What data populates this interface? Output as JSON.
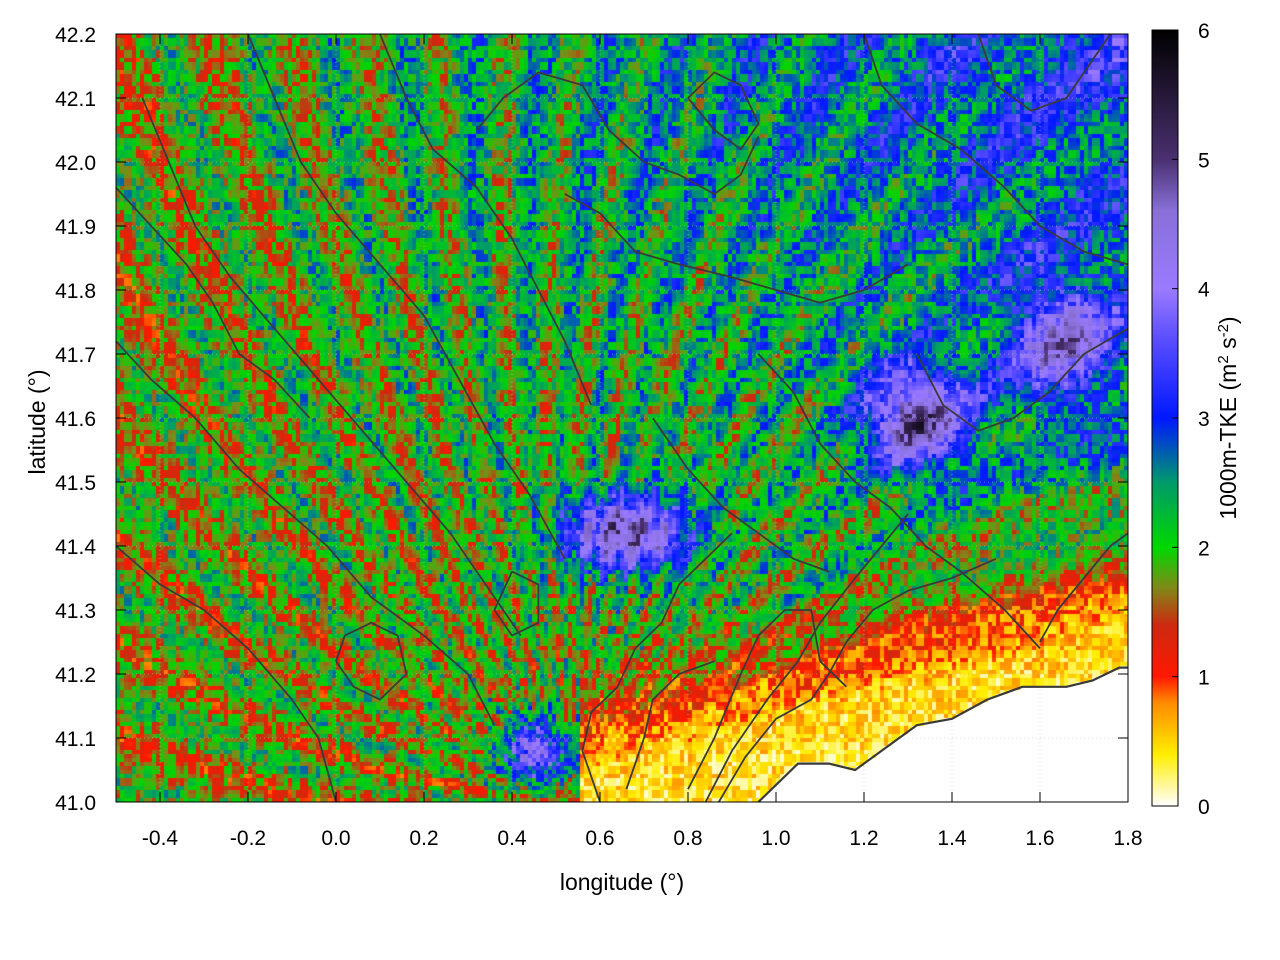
{
  "chart_data": {
    "type": "heatmap",
    "title": "",
    "xlabel": "longitude (°)",
    "ylabel": "latitude (°)",
    "colorbar_label_main": "1000m-TKE (m",
    "colorbar_label_sup1": "2",
    "colorbar_label_mid": " s",
    "colorbar_label_sup2": "-2",
    "colorbar_label_end": ")",
    "xlim": [
      -0.5,
      1.8
    ],
    "ylim": [
      41.0,
      42.2
    ],
    "clim": [
      0,
      6
    ],
    "x_ticks": [
      {
        "value": -0.4,
        "label": "-0.4"
      },
      {
        "value": -0.2,
        "label": "-0.2"
      },
      {
        "value": 0.0,
        "label": "0.0"
      },
      {
        "value": 0.2,
        "label": "0.2"
      },
      {
        "value": 0.4,
        "label": "0.4"
      },
      {
        "value": 0.6,
        "label": "0.6"
      },
      {
        "value": 0.8,
        "label": "0.8"
      },
      {
        "value": 1.0,
        "label": "1.0"
      },
      {
        "value": 1.2,
        "label": "1.2"
      },
      {
        "value": 1.4,
        "label": "1.4"
      },
      {
        "value": 1.6,
        "label": "1.6"
      },
      {
        "value": 1.8,
        "label": "1.8"
      }
    ],
    "y_ticks": [
      {
        "value": 41.0,
        "label": "41.0"
      },
      {
        "value": 41.1,
        "label": "41.1"
      },
      {
        "value": 41.2,
        "label": "41.2"
      },
      {
        "value": 41.3,
        "label": "41.3"
      },
      {
        "value": 41.4,
        "label": "41.4"
      },
      {
        "value": 41.5,
        "label": "41.5"
      },
      {
        "value": 41.6,
        "label": "41.6"
      },
      {
        "value": 41.7,
        "label": "41.7"
      },
      {
        "value": 41.8,
        "label": "41.8"
      },
      {
        "value": 41.9,
        "label": "41.9"
      },
      {
        "value": 42.0,
        "label": "42.0"
      },
      {
        "value": 42.1,
        "label": "42.1"
      },
      {
        "value": 42.2,
        "label": "42.2"
      }
    ],
    "colorbar_ticks": [
      {
        "value": 0,
        "label": "0"
      },
      {
        "value": 1,
        "label": "1"
      },
      {
        "value": 2,
        "label": "2"
      },
      {
        "value": 3,
        "label": "3"
      },
      {
        "value": 4,
        "label": "4"
      },
      {
        "value": 5,
        "label": "5"
      },
      {
        "value": 6,
        "label": "6"
      }
    ],
    "colormap": [
      {
        "value": 0.0,
        "color": "#ffffff"
      },
      {
        "value": 0.4,
        "color": "#ffee00"
      },
      {
        "value": 0.8,
        "color": "#ff8a00"
      },
      {
        "value": 1.0,
        "color": "#ff1800"
      },
      {
        "value": 1.4,
        "color": "#cc2a10"
      },
      {
        "value": 1.7,
        "color": "#7c8c18"
      },
      {
        "value": 2.0,
        "color": "#00d800"
      },
      {
        "value": 2.5,
        "color": "#009a6a"
      },
      {
        "value": 3.0,
        "color": "#0018ff"
      },
      {
        "value": 3.6,
        "color": "#5a4dff"
      },
      {
        "value": 4.0,
        "color": "#9a7aff"
      },
      {
        "value": 4.6,
        "color": "#8870d8"
      },
      {
        "value": 5.0,
        "color": "#4a3070"
      },
      {
        "value": 6.0,
        "color": "#000000"
      }
    ],
    "contour_color": "#3a3a3a",
    "coastline": [
      [
        0.96,
        41.0
      ],
      [
        1.05,
        41.06
      ],
      [
        1.12,
        41.06
      ],
      [
        1.18,
        41.05
      ],
      [
        1.26,
        41.09
      ],
      [
        1.32,
        41.12
      ],
      [
        1.4,
        41.13
      ],
      [
        1.48,
        41.16
      ],
      [
        1.56,
        41.18
      ],
      [
        1.66,
        41.18
      ],
      [
        1.72,
        41.19
      ],
      [
        1.78,
        41.21
      ],
      [
        1.8,
        41.21
      ]
    ],
    "contours": [
      [
        [
          0.87,
          41.0
        ],
        [
          0.93,
          41.07
        ],
        [
          1.0,
          41.13
        ],
        [
          1.08,
          41.16
        ],
        [
          1.12,
          41.2
        ],
        [
          1.16,
          41.25
        ],
        [
          1.22,
          41.3
        ],
        [
          1.3,
          41.33
        ],
        [
          1.4,
          41.35
        ],
        [
          1.5,
          41.38
        ]
      ],
      [
        [
          0.84,
          41.0
        ],
        [
          0.9,
          41.08
        ],
        [
          0.98,
          41.16
        ],
        [
          1.05,
          41.22
        ],
        [
          1.1,
          41.28
        ],
        [
          1.18,
          41.35
        ],
        [
          1.24,
          41.4
        ],
        [
          1.3,
          41.45
        ]
      ],
      [
        [
          0.8,
          41.02
        ],
        [
          0.86,
          41.1
        ],
        [
          0.92,
          41.2
        ],
        [
          0.96,
          41.26
        ],
        [
          1.02,
          41.3
        ],
        [
          1.08,
          41.3
        ],
        [
          1.1,
          41.22
        ],
        [
          1.16,
          41.18
        ]
      ],
      [
        [
          0.6,
          41.0
        ],
        [
          0.56,
          41.08
        ],
        [
          0.58,
          41.14
        ],
        [
          0.64,
          41.18
        ],
        [
          0.68,
          41.24
        ],
        [
          0.74,
          41.28
        ],
        [
          0.78,
          41.34
        ],
        [
          0.84,
          41.38
        ],
        [
          0.9,
          41.42
        ]
      ],
      [
        [
          0.66,
          41.02
        ],
        [
          0.7,
          41.1
        ],
        [
          0.72,
          41.16
        ],
        [
          0.78,
          41.2
        ],
        [
          0.86,
          41.22
        ]
      ],
      [
        [
          1.6,
          41.25
        ],
        [
          1.64,
          41.3
        ],
        [
          1.7,
          41.35
        ],
        [
          1.76,
          41.4
        ],
        [
          1.8,
          41.42
        ]
      ],
      [
        [
          -0.5,
          41.72
        ],
        [
          -0.42,
          41.66
        ],
        [
          -0.32,
          41.6
        ],
        [
          -0.22,
          41.52
        ],
        [
          -0.12,
          41.46
        ],
        [
          -0.02,
          41.4
        ],
        [
          0.08,
          41.32
        ],
        [
          0.2,
          41.26
        ],
        [
          0.3,
          41.2
        ],
        [
          0.36,
          41.12
        ]
      ],
      [
        [
          -0.5,
          41.4
        ],
        [
          -0.4,
          41.34
        ],
        [
          -0.3,
          41.3
        ],
        [
          -0.2,
          41.24
        ],
        [
          -0.1,
          41.16
        ],
        [
          -0.04,
          41.1
        ],
        [
          0.0,
          41.0
        ]
      ],
      [
        [
          -0.44,
          42.1
        ],
        [
          -0.38,
          42.0
        ],
        [
          -0.32,
          41.9
        ],
        [
          -0.24,
          41.82
        ],
        [
          -0.14,
          41.74
        ],
        [
          -0.04,
          41.66
        ],
        [
          0.06,
          41.58
        ],
        [
          0.16,
          41.5
        ],
        [
          0.26,
          41.42
        ],
        [
          0.34,
          41.34
        ],
        [
          0.42,
          41.26
        ]
      ],
      [
        [
          -0.2,
          42.2
        ],
        [
          -0.14,
          42.1
        ],
        [
          -0.08,
          42.0
        ],
        [
          0.0,
          41.92
        ],
        [
          0.1,
          41.84
        ],
        [
          0.2,
          41.76
        ],
        [
          0.28,
          41.66
        ],
        [
          0.36,
          41.56
        ],
        [
          0.44,
          41.48
        ],
        [
          0.52,
          41.38
        ]
      ],
      [
        [
          0.1,
          42.2
        ],
        [
          0.16,
          42.1
        ],
        [
          0.22,
          42.02
        ],
        [
          0.32,
          41.96
        ],
        [
          0.4,
          41.88
        ],
        [
          0.46,
          41.8
        ],
        [
          0.52,
          41.72
        ],
        [
          0.58,
          41.62
        ]
      ],
      [
        [
          0.32,
          42.05
        ],
        [
          0.38,
          42.1
        ],
        [
          0.46,
          42.14
        ],
        [
          0.56,
          42.12
        ],
        [
          0.62,
          42.05
        ],
        [
          0.7,
          42.0
        ],
        [
          0.78,
          41.98
        ],
        [
          0.86,
          41.95
        ],
        [
          0.92,
          41.98
        ],
        [
          0.96,
          42.04
        ]
      ],
      [
        [
          0.52,
          41.95
        ],
        [
          0.6,
          41.92
        ],
        [
          0.68,
          41.86
        ],
        [
          0.78,
          41.84
        ],
        [
          0.9,
          41.82
        ],
        [
          1.0,
          41.8
        ],
        [
          1.1,
          41.78
        ],
        [
          1.2,
          41.8
        ],
        [
          1.3,
          41.84
        ]
      ],
      [
        [
          0.8,
          42.1
        ],
        [
          0.86,
          42.05
        ],
        [
          0.92,
          42.02
        ],
        [
          0.96,
          42.06
        ],
        [
          0.92,
          42.12
        ],
        [
          0.86,
          42.14
        ],
        [
          0.8,
          42.1
        ]
      ],
      [
        [
          1.2,
          42.2
        ],
        [
          1.24,
          42.12
        ],
        [
          1.32,
          42.06
        ],
        [
          1.42,
          42.02
        ],
        [
          1.52,
          41.96
        ],
        [
          1.6,
          41.9
        ],
        [
          1.7,
          41.86
        ],
        [
          1.8,
          41.84
        ]
      ],
      [
        [
          1.46,
          42.2
        ],
        [
          1.5,
          42.12
        ],
        [
          1.58,
          42.08
        ],
        [
          1.66,
          42.1
        ],
        [
          1.72,
          42.16
        ],
        [
          1.76,
          42.2
        ]
      ],
      [
        [
          0.96,
          41.7
        ],
        [
          1.04,
          41.64
        ],
        [
          1.1,
          41.56
        ],
        [
          1.18,
          41.5
        ],
        [
          1.26,
          41.46
        ],
        [
          1.34,
          41.4
        ],
        [
          1.42,
          41.36
        ],
        [
          1.52,
          41.3
        ],
        [
          1.6,
          41.24
        ]
      ],
      [
        [
          0.72,
          41.6
        ],
        [
          0.8,
          41.52
        ],
        [
          0.88,
          41.46
        ],
        [
          0.96,
          41.42
        ],
        [
          1.04,
          41.38
        ],
        [
          1.12,
          41.36
        ]
      ],
      [
        [
          -0.5,
          41.96
        ],
        [
          -0.42,
          41.9
        ],
        [
          -0.34,
          41.84
        ],
        [
          -0.28,
          41.78
        ],
        [
          -0.22,
          41.7
        ],
        [
          -0.14,
          41.66
        ],
        [
          -0.06,
          41.6
        ]
      ],
      [
        [
          0.0,
          41.22
        ],
        [
          0.04,
          41.18
        ],
        [
          0.1,
          41.16
        ],
        [
          0.16,
          41.2
        ],
        [
          0.14,
          41.26
        ],
        [
          0.08,
          41.28
        ],
        [
          0.02,
          41.26
        ],
        [
          0.0,
          41.22
        ]
      ],
      [
        [
          0.36,
          41.3
        ],
        [
          0.4,
          41.26
        ],
        [
          0.46,
          41.28
        ],
        [
          0.46,
          41.34
        ],
        [
          0.4,
          41.36
        ],
        [
          0.36,
          41.3
        ]
      ],
      [
        [
          1.32,
          41.7
        ],
        [
          1.38,
          41.62
        ],
        [
          1.46,
          41.58
        ],
        [
          1.54,
          41.6
        ],
        [
          1.62,
          41.64
        ],
        [
          1.7,
          41.7
        ],
        [
          1.8,
          41.74
        ]
      ]
    ],
    "colored_regions": [
      {
        "region": "white-coastal-sea",
        "lon": 1.5,
        "lat": 41.05,
        "value": 0.05
      },
      {
        "region": "yellow-coastal-band",
        "lon": 1.2,
        "lat": 41.1,
        "value": 0.4
      },
      {
        "region": "orange-coastal-band",
        "lon": 1.3,
        "lat": 41.25,
        "value": 0.8
      },
      {
        "region": "northwest-mixed",
        "lon": -0.1,
        "lat": 41.8,
        "value": 1.4
      },
      {
        "region": "northeast-mixed",
        "lon": 1.4,
        "lat": 41.9,
        "value": 2.6
      },
      {
        "region": "central-purple-maxima",
        "lon": 0.66,
        "lat": 41.42,
        "value": 4.8
      },
      {
        "region": "east-purple-maxima",
        "lon": 1.3,
        "lat": 41.6,
        "value": 5.2
      }
    ]
  }
}
